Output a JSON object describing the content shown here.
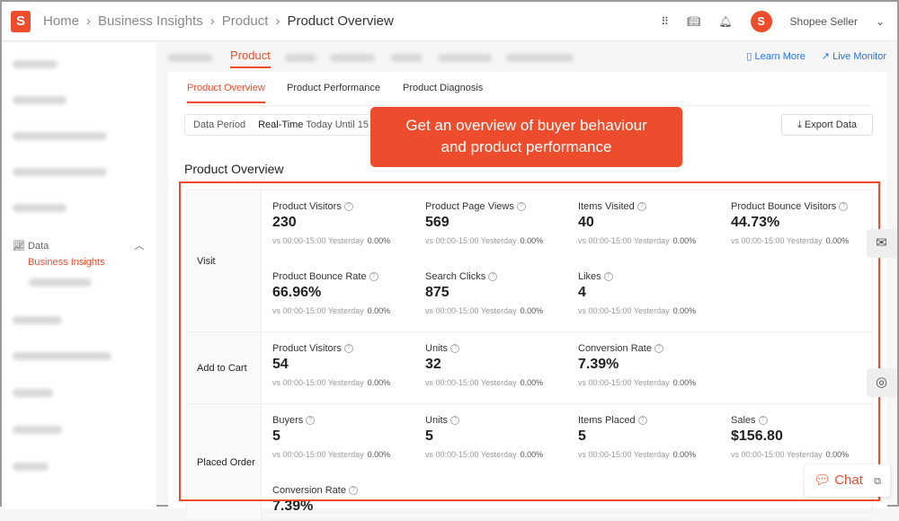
{
  "header": {
    "breadcrumbs": [
      "Home",
      "Business Insights",
      "Product"
    ],
    "current": "Product Overview",
    "user": "Shopee Seller"
  },
  "sidebar": {
    "section": "Data",
    "active_item": "Business Insights"
  },
  "tabs": {
    "active": "Product"
  },
  "links": {
    "learn_more": "Learn More",
    "live_monitor": "Live Monitor"
  },
  "subtabs": [
    "Product Overview",
    "Product Performance",
    "Product Diagnosis"
  ],
  "period": {
    "label": "Data Period",
    "mode": "Real-Time",
    "range": "Today Until 15"
  },
  "export_label": "Export Data",
  "section_title": "Product Overview",
  "callout": {
    "line1": "Get an overview of buyer behaviour",
    "line2": "and product performance"
  },
  "compare_label": "vs 00:00-15:00 Yesterday",
  "rows": [
    {
      "label": "Visit",
      "metrics": [
        {
          "name": "Product Visitors",
          "value": "230",
          "change": "0.00%"
        },
        {
          "name": "Product Page Views",
          "value": "569",
          "change": "0.00%"
        },
        {
          "name": "Items Visited",
          "value": "40",
          "change": "0.00%"
        },
        {
          "name": "Product Bounce Visitors",
          "value": "44.73%",
          "change": "0.00%"
        },
        {
          "name": "Product Bounce Rate",
          "value": "66.96%",
          "change": "0.00%"
        },
        {
          "name": "Search Clicks",
          "value": "875",
          "change": "0.00%"
        },
        {
          "name": "Likes",
          "value": "4",
          "change": "0.00%"
        }
      ]
    },
    {
      "label": "Add to Cart",
      "metrics": [
        {
          "name": "Product Visitors",
          "value": "54",
          "change": "0.00%"
        },
        {
          "name": "Units",
          "value": "32",
          "change": "0.00%"
        },
        {
          "name": "Conversion Rate",
          "value": "7.39%",
          "change": "0.00%"
        }
      ]
    },
    {
      "label": "Placed Order",
      "metrics": [
        {
          "name": "Buyers",
          "value": "5",
          "change": "0.00%"
        },
        {
          "name": "Units",
          "value": "5",
          "change": "0.00%"
        },
        {
          "name": "Items Placed",
          "value": "5",
          "change": "0.00%"
        },
        {
          "name": "Sales",
          "value": "$156.80",
          "change": "0.00%"
        },
        {
          "name": "Conversion Rate",
          "value": "7.39%",
          "change": ""
        }
      ]
    }
  ],
  "chat_label": "Chat",
  "colors": {
    "brand": "#ee4d2d",
    "link": "#2673dd"
  }
}
